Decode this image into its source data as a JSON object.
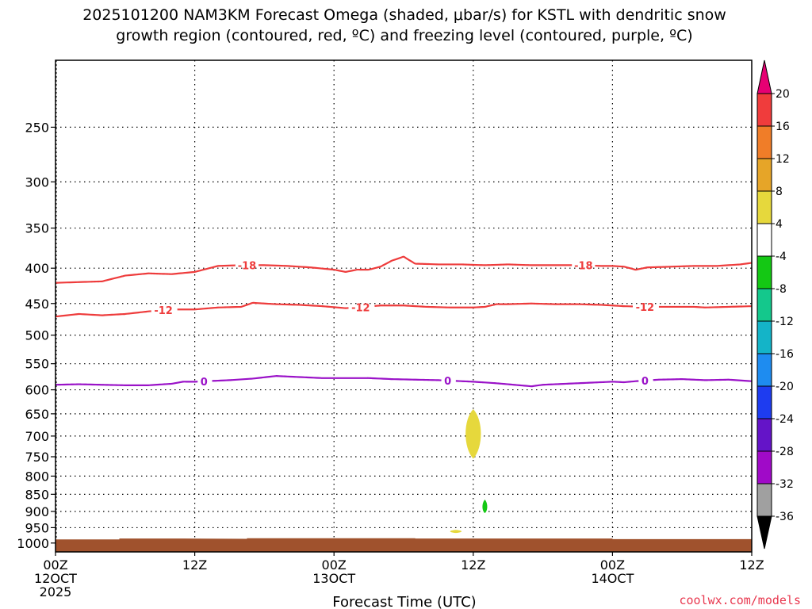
{
  "chart_data": {
    "type": "heatmap",
    "title_lines": [
      "2025101200 NAM3KM Forecast Omega (shaded, μbar/s) for KSTL with dendritic snow",
      "growth region (contoured, red, ºC) and freezing level (contoured, purple, ºC)"
    ],
    "xlabel": "Forecast Time (UTC)",
    "ylabel": "",
    "x_range_hours": [
      0,
      60
    ],
    "x_ticks": [
      {
        "hour": 0,
        "lines": [
          "00Z",
          "12OCT",
          "2025"
        ]
      },
      {
        "hour": 12,
        "lines": [
          "12Z"
        ]
      },
      {
        "hour": 24,
        "lines": [
          "00Z",
          "13OCT"
        ]
      },
      {
        "hour": 36,
        "lines": [
          "12Z"
        ]
      },
      {
        "hour": 48,
        "lines": [
          "00Z",
          "14OCT"
        ]
      },
      {
        "hour": 60,
        "lines": [
          "12Z"
        ]
      }
    ],
    "y_axis": "pressure_log",
    "y_range_hpa": [
      1030,
      200
    ],
    "y_ticks": [
      250,
      300,
      350,
      400,
      450,
      500,
      550,
      600,
      650,
      700,
      750,
      800,
      850,
      900,
      950,
      1000
    ],
    "gridlines": "dotted",
    "omega_colorbar": {
      "levels": [
        20,
        16,
        12,
        8,
        4,
        -4,
        -8,
        -12,
        -16,
        -20,
        -24,
        -28,
        -32,
        -36
      ],
      "colors": [
        "#e60073",
        "#f03c3c",
        "#f07d28",
        "#e6a528",
        "#e6d83c",
        "#ffffff",
        "#14c814",
        "#14c88c",
        "#14b4c8",
        "#1e8cf0",
        "#1e3cf0",
        "#6414c8",
        "#a00ac8",
        "#a0a0a0",
        "#000000"
      ]
    },
    "contours": [
      {
        "name": "dgz-top-minus-18",
        "label": "-18",
        "color": "#ee3c3c",
        "points": [
          [
            0,
            420
          ],
          [
            4,
            418
          ],
          [
            6,
            410
          ],
          [
            8,
            407
          ],
          [
            10,
            408
          ],
          [
            12,
            405
          ],
          [
            14,
            397
          ],
          [
            16,
            396
          ],
          [
            18,
            396
          ],
          [
            20,
            397
          ],
          [
            22,
            399
          ],
          [
            24,
            402
          ],
          [
            25,
            405
          ],
          [
            26,
            402
          ],
          [
            27,
            402
          ],
          [
            28,
            398
          ],
          [
            29,
            390
          ],
          [
            30,
            385
          ],
          [
            31,
            394
          ],
          [
            33,
            395
          ],
          [
            35,
            395
          ],
          [
            37,
            396
          ],
          [
            39,
            395
          ],
          [
            41,
            396
          ],
          [
            43,
            396
          ],
          [
            45,
            396
          ],
          [
            47,
            397
          ],
          [
            48,
            397
          ],
          [
            49,
            398
          ],
          [
            50,
            402
          ],
          [
            51,
            399
          ],
          [
            53,
            398
          ],
          [
            55,
            397
          ],
          [
            57,
            397
          ],
          [
            59,
            395
          ],
          [
            60,
            393
          ]
        ],
        "label_hours": [
          16.5,
          45.5
        ]
      },
      {
        "name": "dgz-bottom-minus-12",
        "label": "-12",
        "color": "#ee3c3c",
        "points": [
          [
            0,
            470
          ],
          [
            2,
            466
          ],
          [
            4,
            468
          ],
          [
            6,
            466
          ],
          [
            8,
            462
          ],
          [
            10,
            459
          ],
          [
            12,
            459
          ],
          [
            14,
            456
          ],
          [
            16,
            455
          ],
          [
            17,
            449
          ],
          [
            19,
            451
          ],
          [
            21,
            452
          ],
          [
            23,
            454
          ],
          [
            25,
            457
          ],
          [
            26,
            456
          ],
          [
            28,
            453
          ],
          [
            30,
            453
          ],
          [
            32,
            455
          ],
          [
            34,
            456
          ],
          [
            36,
            456
          ],
          [
            37,
            455
          ],
          [
            38,
            451
          ],
          [
            39,
            451
          ],
          [
            41,
            450
          ],
          [
            43,
            451
          ],
          [
            45,
            451
          ],
          [
            47,
            452
          ],
          [
            49,
            454
          ],
          [
            51,
            455
          ],
          [
            53,
            455
          ],
          [
            55,
            455
          ],
          [
            56,
            456
          ],
          [
            58,
            455
          ],
          [
            60,
            454
          ]
        ],
        "label_hours": [
          9.3,
          26.3,
          50.8
        ]
      },
      {
        "name": "freezing-level-0",
        "label": "0",
        "color": "#9a12c8",
        "points": [
          [
            0,
            590
          ],
          [
            2,
            589
          ],
          [
            4,
            590
          ],
          [
            6,
            591
          ],
          [
            8,
            591
          ],
          [
            10,
            588
          ],
          [
            11,
            584
          ],
          [
            12,
            584
          ],
          [
            13,
            583
          ],
          [
            15,
            581
          ],
          [
            17,
            578
          ],
          [
            19,
            573
          ],
          [
            21,
            575
          ],
          [
            23,
            577
          ],
          [
            25,
            577
          ],
          [
            27,
            577
          ],
          [
            29,
            579
          ],
          [
            31,
            580
          ],
          [
            33,
            581
          ],
          [
            35,
            583
          ],
          [
            36,
            584
          ],
          [
            38,
            587
          ],
          [
            40,
            591
          ],
          [
            41,
            593
          ],
          [
            42,
            590
          ],
          [
            44,
            588
          ],
          [
            46,
            586
          ],
          [
            48,
            584
          ],
          [
            49,
            585
          ],
          [
            50,
            583
          ],
          [
            52,
            580
          ],
          [
            54,
            579
          ],
          [
            56,
            581
          ],
          [
            58,
            580
          ],
          [
            60,
            583
          ]
        ],
        "label_hours": [
          12.8,
          33.8,
          50.8
        ]
      }
    ],
    "omega_features": [
      {
        "name": "omega-yellow-blob-700mb",
        "color": "#e6d83c",
        "center_hour": 36,
        "center_hpa": 700,
        "hour_halfwidth": 0.8,
        "hpa_top": 640,
        "hpa_bottom": 755
      },
      {
        "name": "omega-green-blob-880mb",
        "color": "#14c814",
        "center_hour": 37,
        "center_hpa": 890,
        "hour_halfwidth": 0.25,
        "hpa_top": 865,
        "hpa_bottom": 905
      },
      {
        "name": "omega-yellow-blob-960mb",
        "color": "#e6d83c",
        "center_hour": 34.5,
        "center_hpa": 962,
        "hour_halfwidth": 0.6,
        "hpa_top": 957,
        "hpa_bottom": 967
      }
    ],
    "terrain": {
      "name": "surface-terrain",
      "color": "#a0522d",
      "points": [
        [
          0,
          988
        ],
        [
          5.5,
          988
        ],
        [
          5.5,
          985
        ],
        [
          11,
          985
        ],
        [
          16.5,
          986
        ],
        [
          16.5,
          984
        ],
        [
          31,
          984
        ],
        [
          31,
          985
        ],
        [
          48,
          985
        ],
        [
          48,
          987
        ],
        [
          60,
          987
        ]
      ]
    }
  },
  "credit": "coolwx.com/models"
}
